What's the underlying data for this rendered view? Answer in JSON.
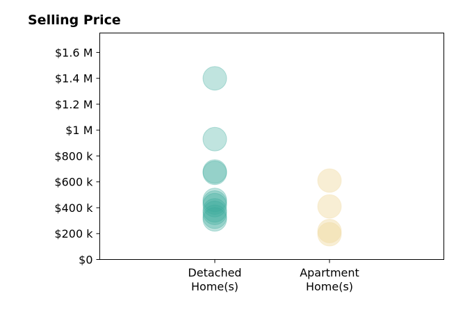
{
  "chart_data": {
    "type": "scatter",
    "title": "Selling Price",
    "xlabel": "",
    "ylabel": "",
    "ylim": [
      0,
      1750000
    ],
    "grid": false,
    "y_ticks": [
      {
        "value": 0,
        "label": "$0"
      },
      {
        "value": 200000,
        "label": "$200 k"
      },
      {
        "value": 400000,
        "label": "$400 k"
      },
      {
        "value": 600000,
        "label": "$600 k"
      },
      {
        "value": 800000,
        "label": "$800 k"
      },
      {
        "value": 1000000,
        "label": "$1 M"
      },
      {
        "value": 1200000,
        "label": "$1.2 M"
      },
      {
        "value": 1400000,
        "label": "$1.4 M"
      },
      {
        "value": 1600000,
        "label": "$1.6 M"
      }
    ],
    "categories": [
      {
        "key": "detached",
        "lines": [
          "Detached",
          "Home(s)"
        ]
      },
      {
        "key": "apartment",
        "lines": [
          "Apartment",
          "Home(s)"
        ]
      }
    ],
    "series": [
      {
        "category": "detached",
        "color": "#3aaa9b",
        "values": [
          1400000,
          930000,
          680000,
          670000,
          460000,
          440000,
          420000,
          380000,
          360000,
          330000,
          310000
        ]
      },
      {
        "category": "apartment",
        "color": "#f0d9a0",
        "values": [
          610000,
          410000,
          220000,
          195000
        ]
      }
    ]
  }
}
